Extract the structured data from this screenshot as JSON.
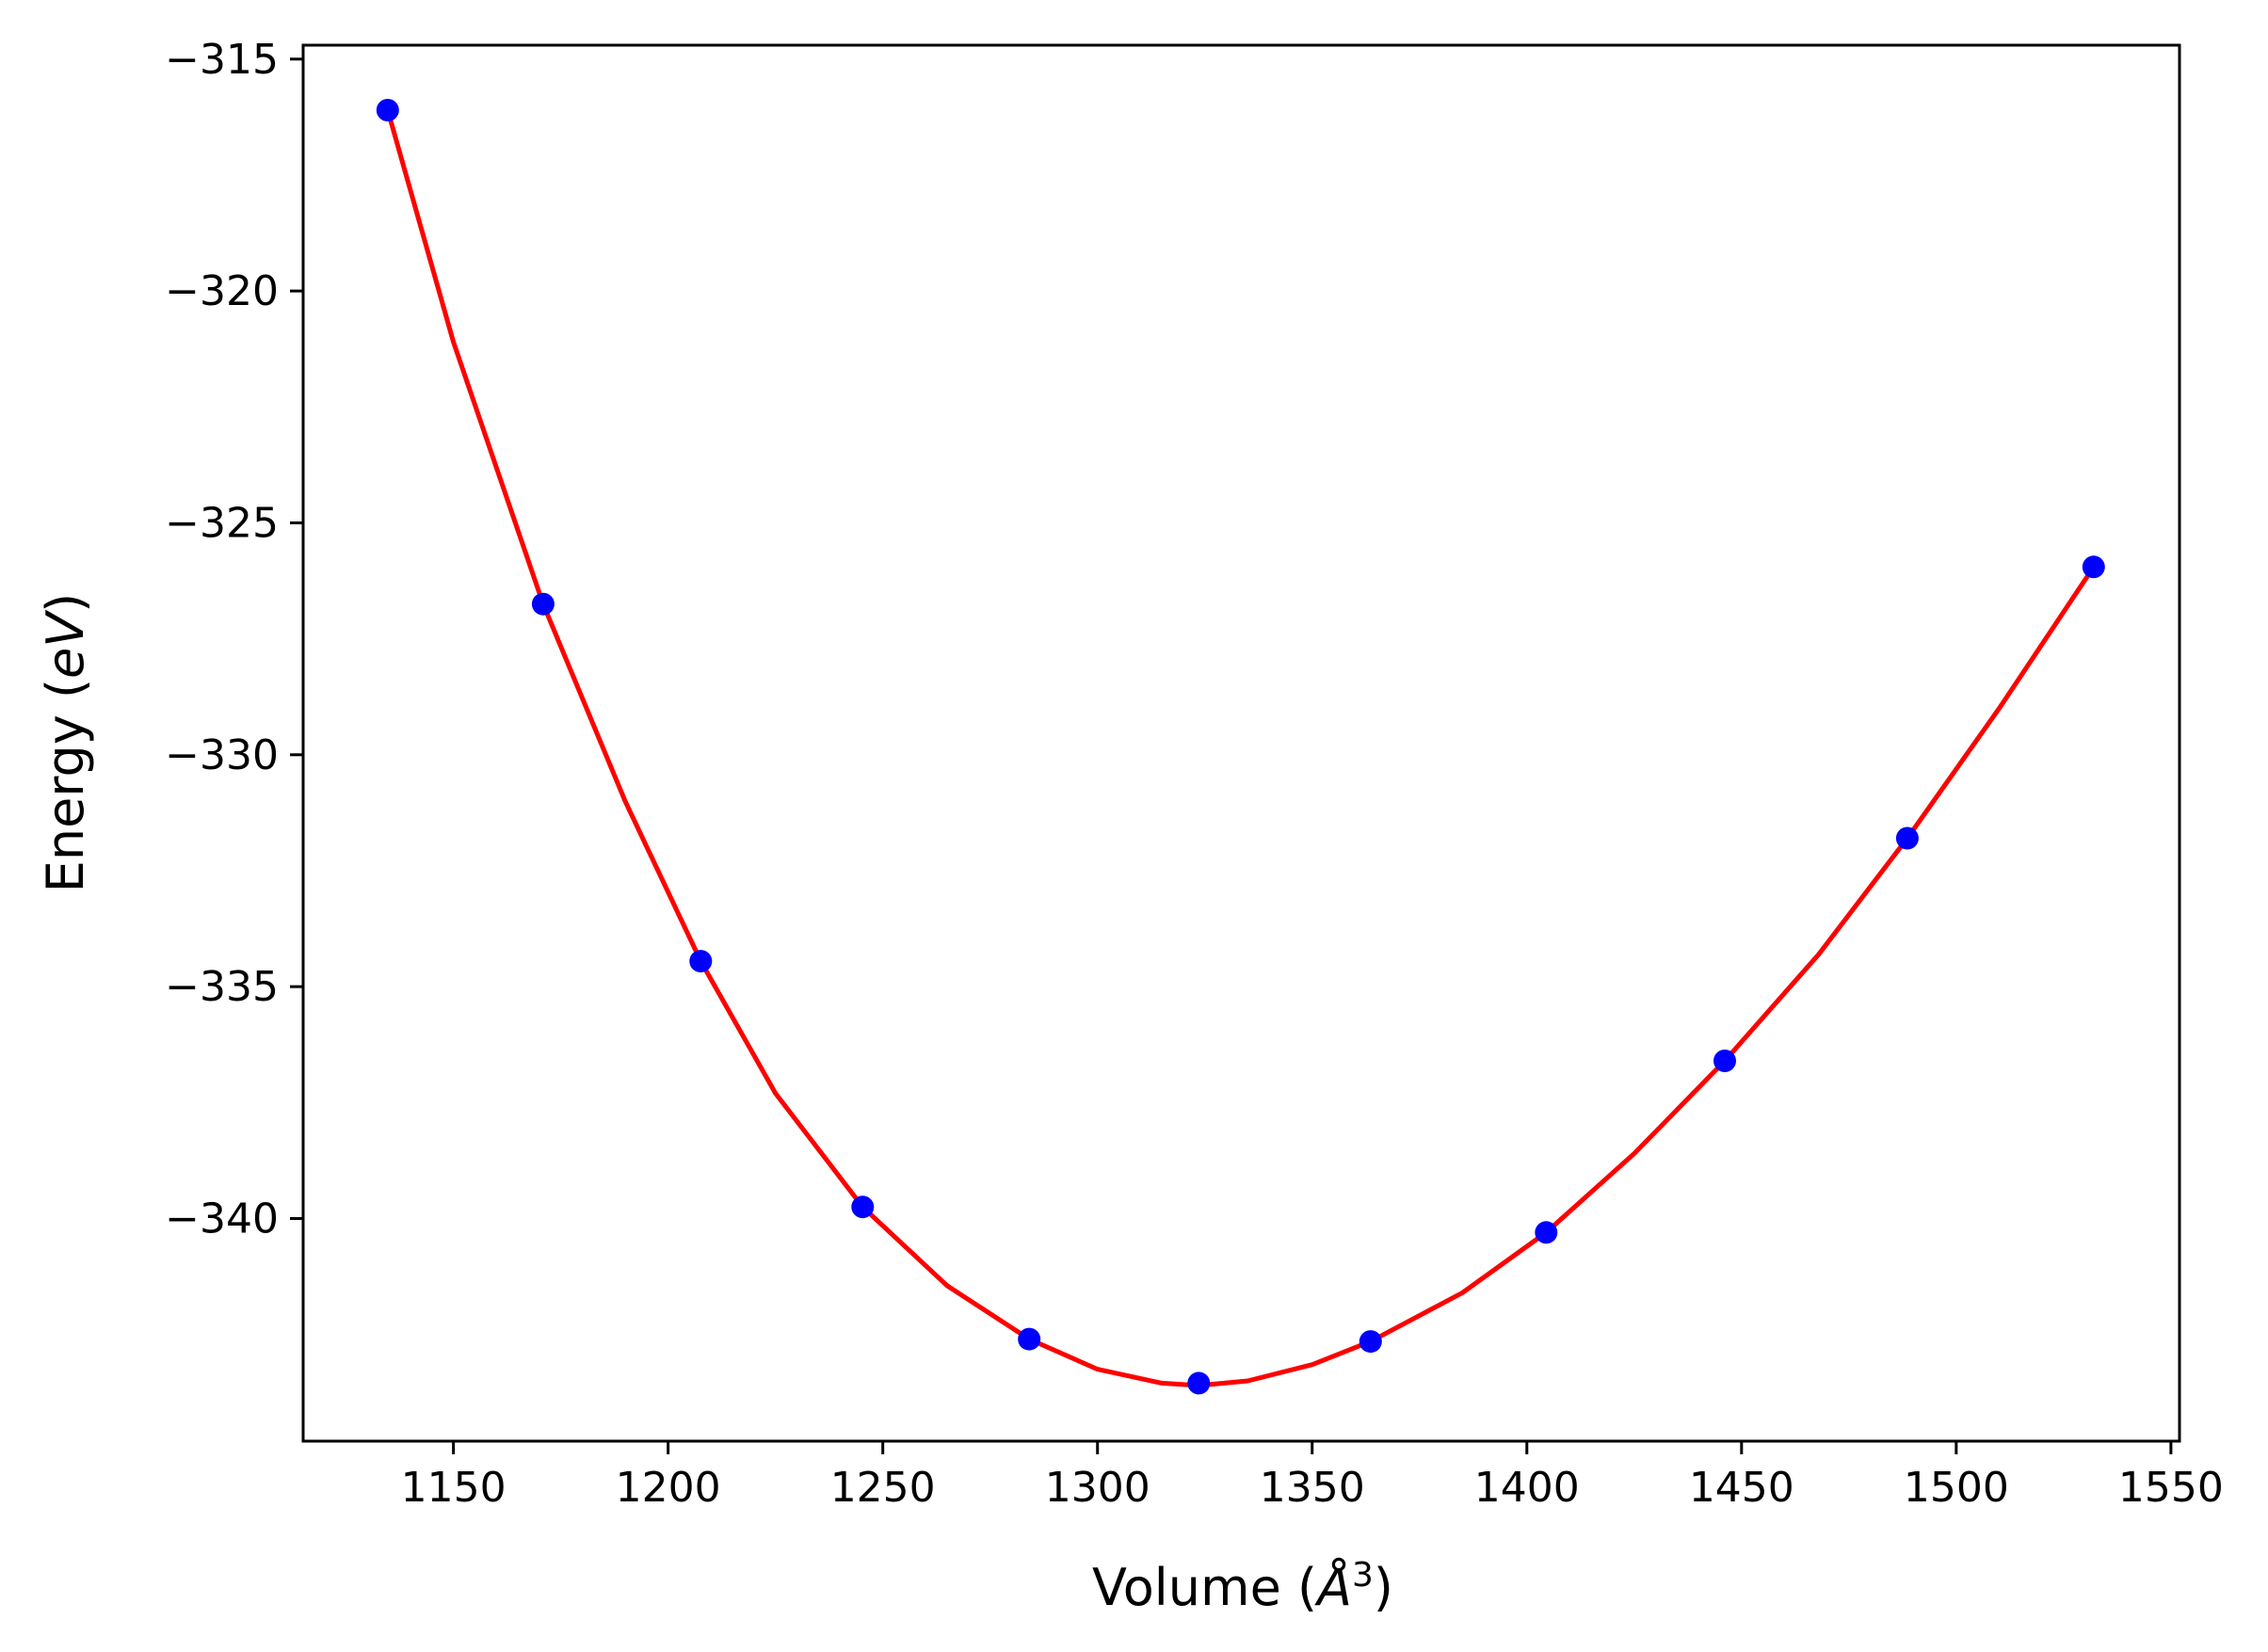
{
  "chart_data": {
    "type": "scatter",
    "title": "",
    "xlabel": {
      "prefix": "Volume (",
      "symbol": "Å",
      "exponent": "3",
      "suffix": ")"
    },
    "ylabel": {
      "prefix": "Energy (",
      "unit": "eV",
      "suffix": ")"
    },
    "xlim": [
      1115,
      1552
    ],
    "ylim": [
      -344.8,
      -314.7
    ],
    "xticks": [
      1150,
      1200,
      1250,
      1300,
      1350,
      1400,
      1450,
      1500,
      1550
    ],
    "xtick_labels": [
      "1150",
      "1200",
      "1250",
      "1300",
      "1350",
      "1400",
      "1450",
      "1500",
      "1550"
    ],
    "yticks": [
      -315,
      -320,
      -325,
      -330,
      -335,
      -340
    ],
    "ytick_labels": [
      "−315",
      "−320",
      "−325",
      "−330",
      "−335",
      "−340"
    ],
    "grid": false,
    "legend": "none",
    "series": [
      {
        "kind": "points",
        "color": "#0000ff",
        "x": [
          1134.7,
          1170.9,
          1207.6,
          1245.3,
          1284.1,
          1323.6,
          1363.6,
          1404.5,
          1446.1,
          1488.6,
          1532.0
        ],
        "y": [
          -316.1,
          -326.75,
          -334.45,
          -339.75,
          -342.6,
          -343.55,
          -342.65,
          -340.3,
          -336.6,
          -331.8,
          -325.95
        ]
      },
      {
        "kind": "fit-curve",
        "color": "#ff0000",
        "x": [
          1134.7,
          1150,
          1170.9,
          1190,
          1207.6,
          1225,
          1245.3,
          1265,
          1284.1,
          1300,
          1315,
          1323.6,
          1335,
          1350,
          1363.6,
          1385,
          1404.5,
          1425,
          1446.1,
          1468,
          1488.6,
          1510,
          1532.0
        ],
        "y": [
          -316.1,
          -321.1,
          -326.75,
          -331.0,
          -334.45,
          -337.3,
          -339.75,
          -341.45,
          -342.6,
          -343.25,
          -343.55,
          -343.6,
          -343.5,
          -343.15,
          -342.65,
          -341.6,
          -340.3,
          -338.6,
          -336.6,
          -334.3,
          -331.8,
          -329.0,
          -325.95
        ]
      }
    ]
  }
}
